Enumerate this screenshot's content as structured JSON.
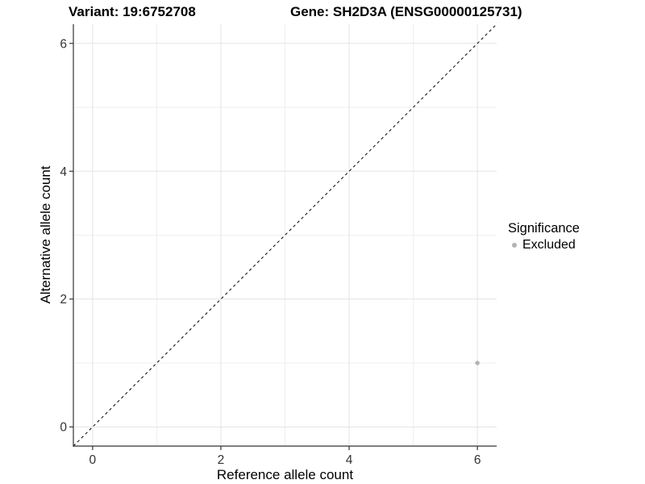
{
  "titles": {
    "variant": "Variant: 19:6752708",
    "gene": "Gene: SH2D3A (ENSG00000125731)"
  },
  "chart_data": {
    "type": "scatter",
    "title_left": "Variant: 19:6752708",
    "title_right": "Gene: SH2D3A (ENSG00000125731)",
    "xlabel": "Reference allele count",
    "ylabel": "Alternative allele count",
    "xlim": [
      -0.3,
      6.3
    ],
    "ylim": [
      -0.3,
      6.3
    ],
    "x_major_ticks": [
      0,
      2,
      4,
      6
    ],
    "y_major_ticks": [
      0,
      2,
      4,
      6
    ],
    "x_minor_ticks": [
      1,
      3,
      5
    ],
    "y_minor_ticks": [
      1,
      3,
      5
    ],
    "grid": true,
    "identity_line": {
      "style": "dashed",
      "color": "#000000",
      "from": [
        -0.3,
        -0.3
      ],
      "to": [
        6.3,
        6.3
      ]
    },
    "series": [
      {
        "name": "Excluded",
        "color": "#b3b3b3",
        "points": [
          {
            "x": 6,
            "y": 1
          }
        ]
      }
    ],
    "legend": {
      "title": "Significance",
      "position": "right",
      "entries": [
        {
          "label": "Excluded",
          "color": "#b3b3b3"
        }
      ]
    },
    "style": {
      "grid_major_color": "#e3e3e3",
      "grid_minor_color": "#efefef",
      "axis_color": "#333333",
      "tick_label_color": "#333333",
      "tick_label_size": 15.5,
      "point_radius": 2.7
    }
  }
}
